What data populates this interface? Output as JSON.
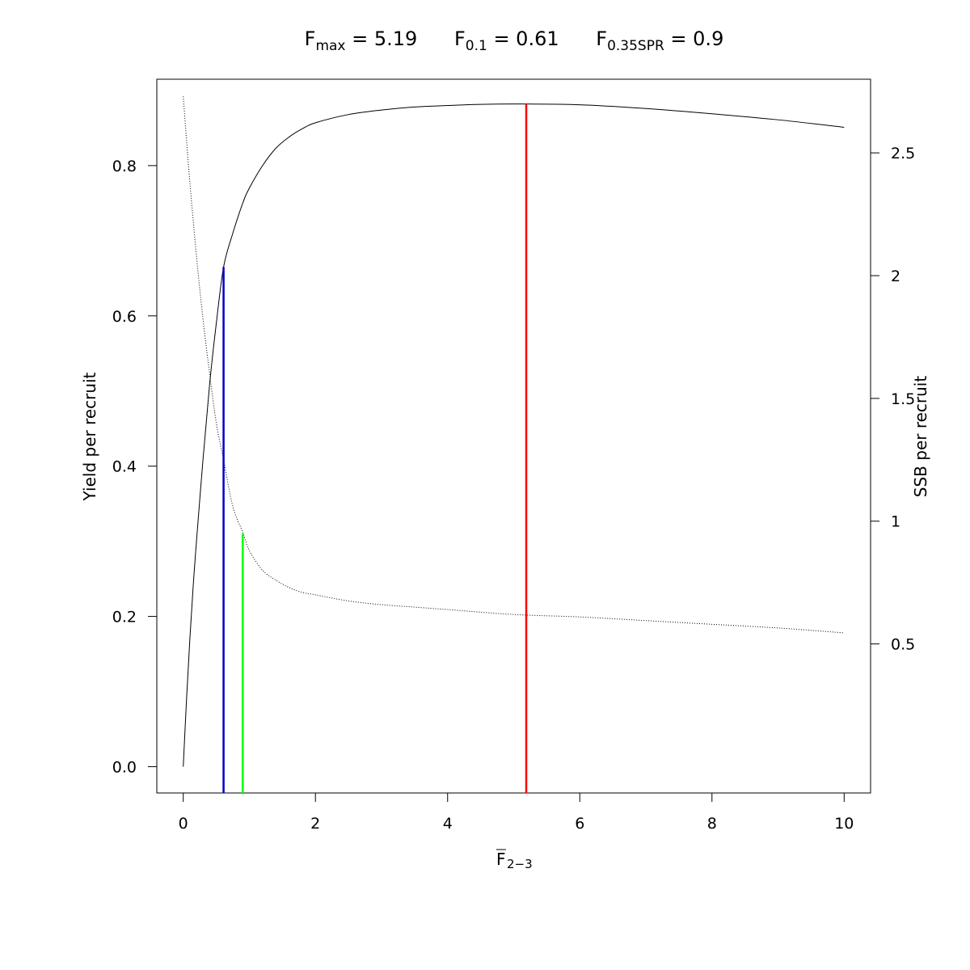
{
  "chart_data": {
    "type": "line",
    "title_parts": [
      {
        "base": "F",
        "sub": "max",
        "rest": " = 5.19"
      },
      {
        "base": "F",
        "sub": "0.1",
        "rest": " = 0.61"
      },
      {
        "base": "F",
        "sub": "0.35SPR",
        "rest": " = 0.9"
      }
    ],
    "xlabel": {
      "base": "F",
      "sub": "2−3",
      "overline": true
    },
    "ylabel": "Yield per recruit",
    "y2label": "SSB per recruit",
    "xlim": [
      -0.4,
      10.4
    ],
    "ylim": [
      -0.035,
      0.915
    ],
    "y2lim": [
      -0.107,
      2.8
    ],
    "x_ticks": [
      0,
      2,
      4,
      6,
      8,
      10
    ],
    "x_tick_labels": [
      "0",
      "2",
      "4",
      "6",
      "8",
      "10"
    ],
    "y_ticks": [
      0.0,
      0.2,
      0.4,
      0.6,
      0.8
    ],
    "y_tick_labels": [
      "0.0",
      "0.2",
      "0.4",
      "0.6",
      "0.8"
    ],
    "y2_ticks": [
      0.5,
      1,
      1.5,
      2,
      2.5
    ],
    "y2_tick_labels": [
      "0.5",
      "1",
      "1.5",
      "2",
      "2.5"
    ],
    "series": [
      {
        "axis": "left",
        "line_style": "solid",
        "color": "#000000",
        "x": [
          0,
          0.05,
          0.1,
          0.15,
          0.2,
          0.3,
          0.4,
          0.5,
          0.61,
          0.75,
          0.9,
          1.0,
          1.2,
          1.4,
          1.6,
          1.8,
          2.0,
          2.5,
          3.0,
          3.5,
          4.0,
          4.5,
          5.19,
          6.0,
          7.0,
          8.0,
          9.0,
          10.0
        ],
        "y": [
          0.0,
          0.09,
          0.17,
          0.24,
          0.3,
          0.41,
          0.51,
          0.59,
          0.665,
          0.71,
          0.75,
          0.77,
          0.8,
          0.823,
          0.838,
          0.849,
          0.857,
          0.868,
          0.874,
          0.878,
          0.88,
          0.8815,
          0.882,
          0.881,
          0.876,
          0.869,
          0.861,
          0.851
        ]
      },
      {
        "axis": "right",
        "line_style": "dotted",
        "color": "#000000",
        "x": [
          0,
          0.05,
          0.1,
          0.2,
          0.3,
          0.4,
          0.5,
          0.61,
          0.75,
          0.9,
          1.0,
          1.2,
          1.4,
          1.6,
          1.8,
          2.0,
          2.5,
          3.0,
          3.5,
          4.0,
          5.0,
          6.0,
          7.0,
          8.0,
          9.0,
          10.0
        ],
        "y": [
          2.73,
          2.55,
          2.38,
          2.08,
          1.82,
          1.6,
          1.4,
          1.25,
          1.06,
          0.955,
          0.88,
          0.8,
          0.76,
          0.73,
          0.71,
          0.7,
          0.675,
          0.66,
          0.65,
          0.64,
          0.62,
          0.61,
          0.595,
          0.58,
          0.565,
          0.545
        ]
      }
    ],
    "reference_lines": [
      {
        "name": "F_0.1",
        "x": 0.61,
        "y_top": 0.665,
        "color": "#0000CD"
      },
      {
        "name": "F_0.35SPR",
        "x": 0.9,
        "y_top": 0.31,
        "color": "#00FF00"
      },
      {
        "name": "F_max",
        "x": 5.19,
        "y_top": 0.882,
        "color": "#FF0000"
      }
    ],
    "grid": false,
    "legend": "none"
  }
}
